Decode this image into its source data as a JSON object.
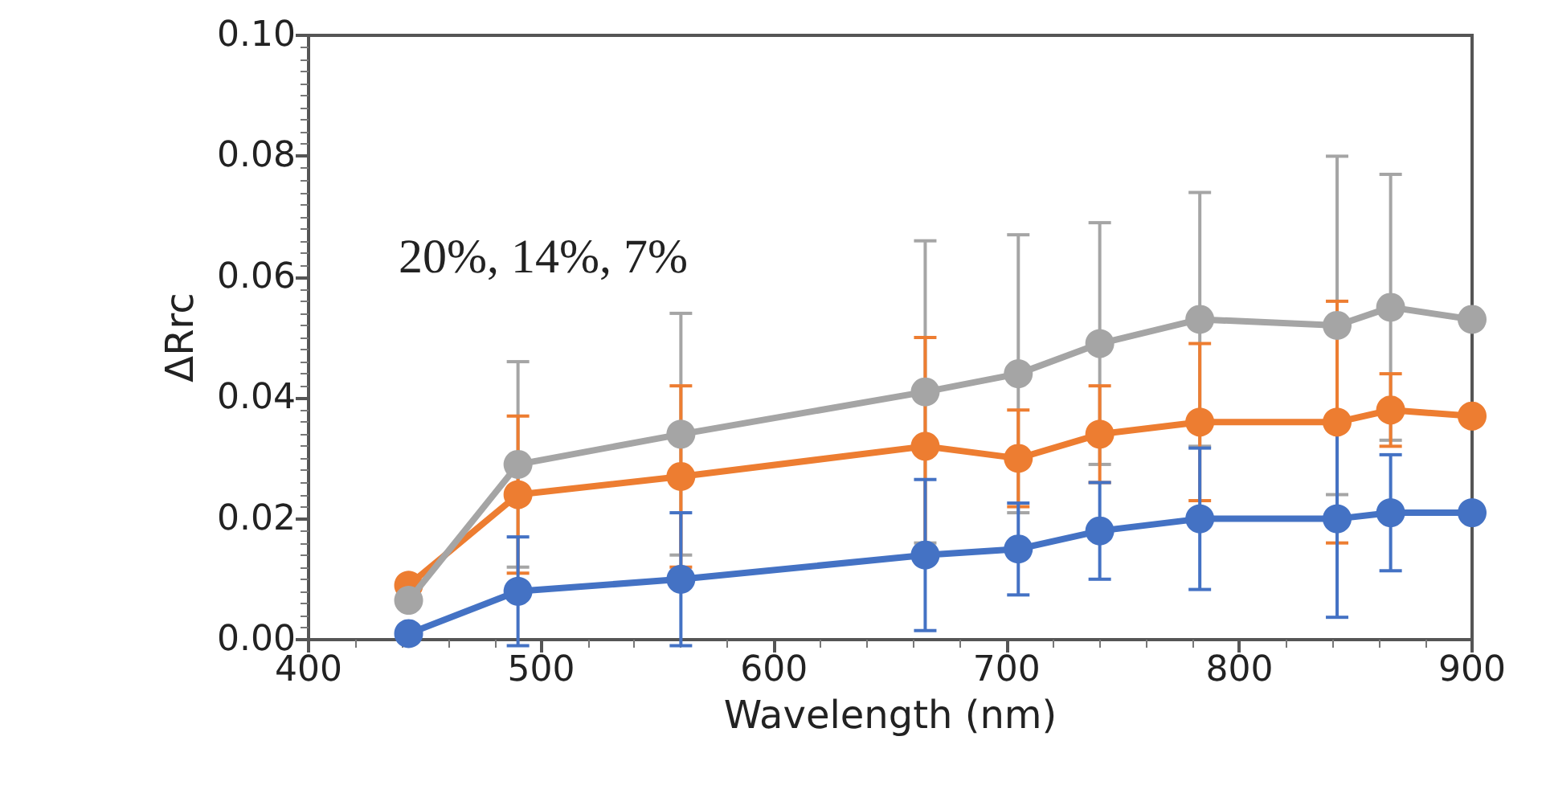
{
  "chart_data": {
    "type": "line",
    "xlabel": "Wavelength (nm)",
    "ylabel": "ΔRrc",
    "annotations": [
      "20%, 14%, 7%"
    ],
    "x": [
      443,
      490,
      560,
      665,
      705,
      740,
      783,
      842,
      865,
      900
    ],
    "series": [
      {
        "color": "#a5a5a5",
        "values": [
          0.0065,
          0.029,
          0.034,
          0.041,
          0.044,
          0.049,
          0.053,
          0.052,
          0.055,
          0.053
        ],
        "errors": [
          null,
          0.017,
          0.02,
          0.025,
          0.023,
          0.02,
          0.021,
          0.028,
          0.022,
          null
        ]
      },
      {
        "color": "#ed7d31",
        "values": [
          0.009,
          0.024,
          0.027,
          0.032,
          0.03,
          0.034,
          0.036,
          0.036,
          0.038,
          0.037
        ],
        "errors": [
          null,
          0.013,
          0.015,
          0.018,
          0.008,
          0.008,
          0.013,
          0.02,
          0.006,
          null
        ]
      },
      {
        "color": "#4472c4",
        "values": [
          0.001,
          0.008,
          0.01,
          0.014,
          0.015,
          0.018,
          0.02,
          0.02,
          0.021,
          0.021
        ],
        "errors": [
          null,
          0.009,
          0.011,
          0.0125,
          0.0076,
          0.008,
          0.0117,
          0.0163,
          0.0096,
          null
        ]
      }
    ],
    "xlim": [
      400,
      900
    ],
    "xticks": [
      400,
      500,
      600,
      700,
      800,
      900
    ],
    "ylim": [
      0,
      0.1
    ],
    "yticks": [
      {
        "value": 0,
        "label": "0.00"
      },
      {
        "value": 0.02,
        "label": "0.02"
      },
      {
        "value": 0.04,
        "label": "0.04"
      },
      {
        "value": 0.06,
        "label": "0.06"
      },
      {
        "value": 0.08,
        "label": "0.08"
      },
      {
        "value": 0.1,
        "label": "0.10"
      }
    ],
    "grid": false,
    "marker": "circle",
    "line_style": "solid"
  }
}
